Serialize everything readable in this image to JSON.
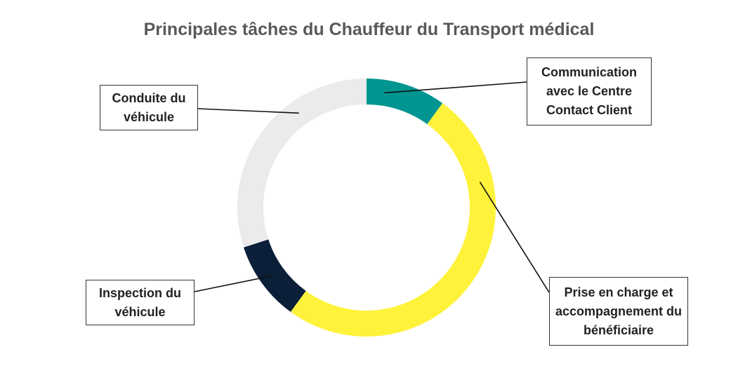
{
  "chart_data": {
    "type": "pie",
    "title": "Principales tâches du Chauffeur du Transport médical",
    "donut": true,
    "labels": [
      "Communication avec le Centre Contact Client",
      "Prise en charge et accompagnement du bénéficiaire",
      "Inspection du véhicule",
      "Conduite du véhicule"
    ],
    "values": [
      10,
      50,
      10,
      30
    ],
    "colors": [
      "#009590",
      "#FFF23A",
      "#0B1F38",
      "#EBEBEB"
    ],
    "legend": "callouts"
  }
}
